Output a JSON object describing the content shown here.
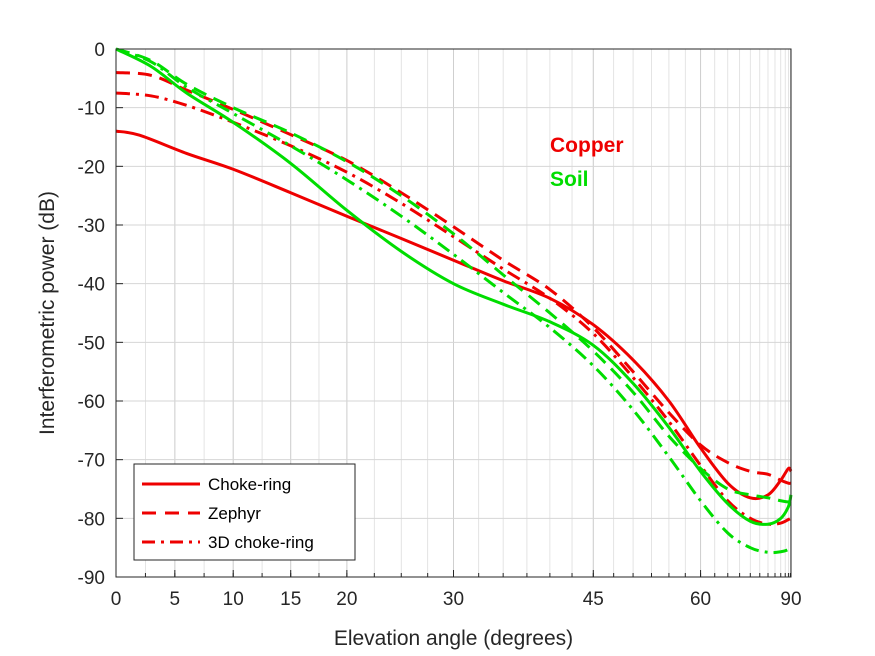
{
  "chart_data": {
    "type": "line",
    "title": "",
    "xlabel": "Elevation angle (degrees)",
    "ylabel": "Interferometric power (dB)",
    "xscale": "sin(elevation)",
    "xlim": [
      0,
      90
    ],
    "ylim": [
      -90,
      0
    ],
    "grid": true,
    "xticks": [
      0,
      5,
      10,
      15,
      20,
      30,
      45,
      60,
      90
    ],
    "yticks": [
      0,
      -10,
      -20,
      -30,
      -40,
      -50,
      -60,
      -70,
      -80,
      -90
    ],
    "legend": {
      "placement": "bottom-left",
      "entries": [
        {
          "label": "Choke-ring",
          "style": "solid"
        },
        {
          "label": "Zephyr",
          "style": "dashed"
        },
        {
          "label": "3D choke-ring",
          "style": "dashdot"
        }
      ]
    },
    "annotations": [
      {
        "text": "Copper",
        "color": "#ee0000"
      },
      {
        "text": "Soil",
        "color": "#00dd00"
      }
    ],
    "series": [
      {
        "group": "Copper",
        "antenna": "Choke-ring",
        "color": "#ee0000",
        "style": "solid",
        "points": [
          [
            0,
            -14
          ],
          [
            2,
            -14.7
          ],
          [
            6,
            -17.8
          ],
          [
            10,
            -20.5
          ],
          [
            15,
            -24.5
          ],
          [
            20,
            -28.5
          ],
          [
            25,
            -32.3
          ],
          [
            30,
            -36
          ],
          [
            35,
            -39.5
          ],
          [
            40,
            -42.5
          ],
          [
            45,
            -47
          ],
          [
            50,
            -53
          ],
          [
            55,
            -60
          ],
          [
            60,
            -68
          ],
          [
            65,
            -74
          ],
          [
            70,
            -76.5
          ],
          [
            75,
            -76
          ],
          [
            80,
            -73.5
          ],
          [
            85,
            -71.5
          ],
          [
            90,
            -72
          ]
        ]
      },
      {
        "group": "Copper",
        "antenna": "Zephyr",
        "color": "#ee0000",
        "style": "dashed",
        "points": [
          [
            0,
            -4
          ],
          [
            3,
            -4.5
          ],
          [
            6,
            -7
          ],
          [
            10,
            -10.3
          ],
          [
            15,
            -14.6
          ],
          [
            20,
            -19
          ],
          [
            25,
            -24.5
          ],
          [
            30,
            -30.3
          ],
          [
            35,
            -36
          ],
          [
            40,
            -41
          ],
          [
            45,
            -47.5
          ],
          [
            50,
            -55
          ],
          [
            55,
            -62
          ],
          [
            60,
            -67.5
          ],
          [
            65,
            -70.5
          ],
          [
            70,
            -72
          ],
          [
            75,
            -72.5
          ],
          [
            80,
            -73.5
          ],
          [
            85,
            -74
          ],
          [
            90,
            -74
          ]
        ]
      },
      {
        "group": "Copper",
        "antenna": "3D choke-ring",
        "color": "#ee0000",
        "style": "dashdot",
        "points": [
          [
            0,
            -7.5
          ],
          [
            3,
            -8
          ],
          [
            6,
            -9.6
          ],
          [
            10,
            -12.5
          ],
          [
            15,
            -16.5
          ],
          [
            20,
            -21
          ],
          [
            25,
            -26.3
          ],
          [
            30,
            -32
          ],
          [
            35,
            -37.5
          ],
          [
            40,
            -42.5
          ],
          [
            45,
            -48.5
          ],
          [
            50,
            -56
          ],
          [
            55,
            -63.5
          ],
          [
            60,
            -71
          ],
          [
            65,
            -77
          ],
          [
            70,
            -80
          ],
          [
            75,
            -81
          ],
          [
            80,
            -80.8
          ],
          [
            85,
            -80.2
          ],
          [
            90,
            -80
          ]
        ]
      },
      {
        "group": "Soil",
        "antenna": "Choke-ring",
        "color": "#00dd00",
        "style": "solid",
        "points": [
          [
            0,
            0
          ],
          [
            3,
            -3
          ],
          [
            6,
            -7.5
          ],
          [
            10,
            -12.5
          ],
          [
            15,
            -19.5
          ],
          [
            20,
            -27.5
          ],
          [
            25,
            -34.5
          ],
          [
            30,
            -40
          ],
          [
            35,
            -43.5
          ],
          [
            40,
            -46.5
          ],
          [
            45,
            -50.5
          ],
          [
            50,
            -57
          ],
          [
            55,
            -64.5
          ],
          [
            60,
            -72
          ],
          [
            65,
            -77.5
          ],
          [
            70,
            -80.5
          ],
          [
            75,
            -81
          ],
          [
            80,
            -80
          ],
          [
            85,
            -78
          ],
          [
            90,
            -76
          ]
        ]
      },
      {
        "group": "Soil",
        "antenna": "Zephyr",
        "color": "#00dd00",
        "style": "dashed",
        "points": [
          [
            0,
            0
          ],
          [
            3,
            -2
          ],
          [
            6,
            -6
          ],
          [
            10,
            -10
          ],
          [
            15,
            -14.3
          ],
          [
            20,
            -19.2
          ],
          [
            25,
            -25
          ],
          [
            30,
            -31.5
          ],
          [
            35,
            -38.5
          ],
          [
            40,
            -45
          ],
          [
            45,
            -51.5
          ],
          [
            50,
            -58.5
          ],
          [
            55,
            -66
          ],
          [
            60,
            -71.5
          ],
          [
            65,
            -75
          ],
          [
            70,
            -76
          ],
          [
            75,
            -76.5
          ],
          [
            80,
            -77
          ],
          [
            85,
            -77.2
          ],
          [
            90,
            -77
          ]
        ]
      },
      {
        "group": "Soil",
        "antenna": "3D choke-ring",
        "color": "#00dd00",
        "style": "dashdot",
        "points": [
          [
            0,
            0
          ],
          [
            3,
            -2.2
          ],
          [
            6,
            -6.5
          ],
          [
            10,
            -11
          ],
          [
            15,
            -16.5
          ],
          [
            20,
            -22.3
          ],
          [
            25,
            -28.5
          ],
          [
            30,
            -35
          ],
          [
            35,
            -41.5
          ],
          [
            40,
            -47.5
          ],
          [
            45,
            -54
          ],
          [
            50,
            -61.5
          ],
          [
            55,
            -69.5
          ],
          [
            60,
            -77
          ],
          [
            65,
            -82.5
          ],
          [
            70,
            -85
          ],
          [
            75,
            -85.8
          ],
          [
            80,
            -85.7
          ],
          [
            85,
            -85.3
          ],
          [
            90,
            -84.8
          ]
        ]
      }
    ]
  }
}
